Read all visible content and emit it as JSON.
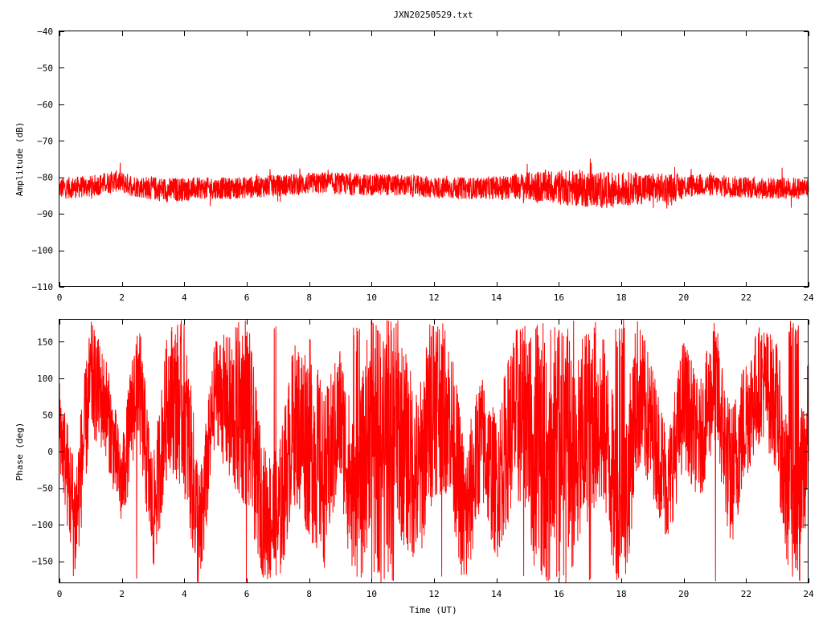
{
  "title": "JXN20250529.txt",
  "colors": {
    "series": "#ff0000",
    "axes": "#000000",
    "background": "#ffffff"
  },
  "chart_data": [
    {
      "type": "line",
      "ylabel": "Amplitude (dB)",
      "xlabel": "",
      "xlim": [
        0,
        24
      ],
      "ylim": [
        -110,
        -40
      ],
      "xticks": [
        0,
        2,
        4,
        6,
        8,
        10,
        12,
        14,
        16,
        18,
        20,
        22,
        24
      ],
      "yticks": [
        -40,
        -50,
        -60,
        -70,
        -80,
        -90,
        -100,
        -110
      ],
      "grid": false,
      "series": [
        {
          "x": [
            0,
            1,
            1.8,
            2.5,
            3.5,
            4.5,
            5.5,
            6.5,
            7.5,
            8.5,
            9.5,
            10.5,
            11.5,
            12.5,
            13.5,
            14.5,
            15.5,
            16.5,
            17.5,
            18.5,
            19.5,
            20.5,
            21.5,
            22.5,
            23.5,
            24
          ],
          "values": [
            -83,
            -82.5,
            -81,
            -82.5,
            -83.5,
            -83,
            -83,
            -82.5,
            -82,
            -81.5,
            -82,
            -82,
            -82.5,
            -83,
            -83,
            -82.5,
            -82.5,
            -83,
            -83.5,
            -83,
            -83,
            -82,
            -82.5,
            -83,
            -83,
            -83
          ],
          "spread_db": [
            3,
            3,
            3,
            3,
            3.5,
            3,
            3,
            3,
            3,
            3,
            3,
            3,
            3,
            3,
            3,
            3.5,
            4.5,
            5,
            5,
            4.5,
            4,
            3,
            3,
            3,
            3,
            3
          ]
        }
      ]
    },
    {
      "type": "line",
      "ylabel": "Phase (deg)",
      "xlabel": "Time (UT)",
      "xlim": [
        0,
        24
      ],
      "ylim": [
        -180,
        180
      ],
      "xticks": [
        0,
        2,
        4,
        6,
        8,
        10,
        12,
        14,
        16,
        18,
        20,
        22,
        24
      ],
      "yticks": [
        150,
        100,
        50,
        0,
        -50,
        -100,
        -150
      ],
      "grid": false,
      "series": [
        {
          "x": [
            0,
            0.5,
            1,
            1.5,
            2,
            2.5,
            3,
            3.5,
            4,
            4.5,
            5,
            5.5,
            6,
            6.5,
            7,
            7.5,
            8,
            8.5,
            9,
            9.5,
            10,
            10.5,
            11,
            11.5,
            12,
            12.5,
            13,
            13.5,
            14,
            14.5,
            15,
            15.5,
            16,
            16.5,
            17,
            17.5,
            18,
            18.5,
            19,
            19.5,
            20,
            20.5,
            21,
            21.5,
            22,
            22.5,
            23,
            23.5,
            24
          ],
          "values": [
            40,
            -100,
            100,
            60,
            -50,
            110,
            -90,
            80,
            60,
            -120,
            90,
            50,
            60,
            -80,
            -100,
            40,
            20,
            -40,
            50,
            -100,
            60,
            90,
            10,
            -40,
            80,
            50,
            -100,
            20,
            -50,
            40,
            60,
            -150,
            90,
            -40,
            60,
            30,
            -130,
            80,
            30,
            -50,
            70,
            10,
            100,
            -40,
            50,
            100,
            60,
            -150,
            30
          ],
          "spread_deg": [
            60,
            90,
            80,
            70,
            60,
            90,
            80,
            100,
            120,
            90,
            70,
            110,
            140,
            90,
            100,
            110,
            140,
            120,
            100,
            130,
            150,
            160,
            140,
            120,
            140,
            110,
            110,
            90,
            100,
            120,
            140,
            160,
            160,
            150,
            140,
            120,
            130,
            110,
            90,
            80,
            90,
            80,
            90,
            100,
            90,
            80,
            90,
            130,
            100
          ]
        }
      ]
    }
  ]
}
